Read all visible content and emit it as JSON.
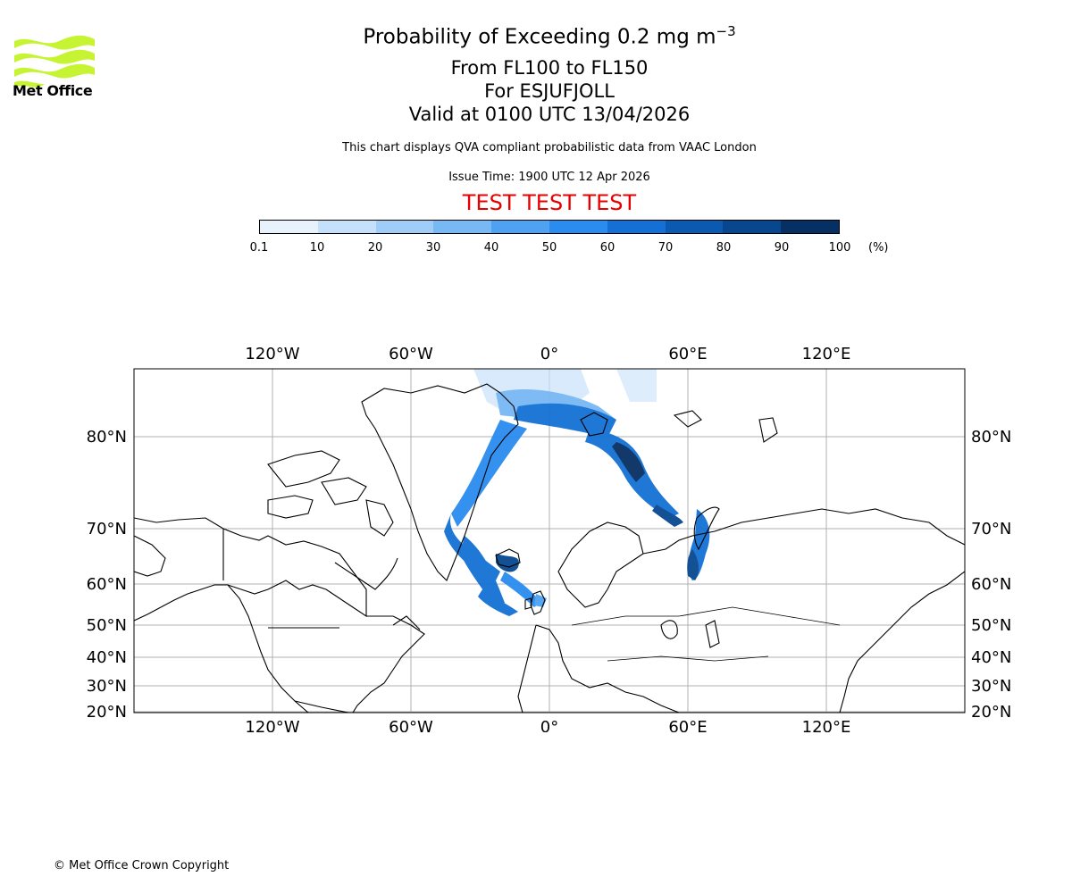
{
  "logo": {
    "text": "Met Office",
    "icon": "met-office-wave-logo",
    "color": "#c6f432"
  },
  "title": {
    "line1": "Probability of Exceeding 0.2 mg m",
    "line1_sup": "−3",
    "line2": "From FL100 to FL150",
    "line3": "For ESJUFJOLL",
    "line4": "Valid at 0100 UTC 13/04/2026"
  },
  "subtitle": "This chart displays QVA compliant probabilistic data from VAAC London",
  "issue_time": "Issue Time: 1900 UTC 12 Apr 2026",
  "test_banner": "TEST TEST TEST",
  "colorbar": {
    "ticks": [
      "0.1",
      "10",
      "20",
      "30",
      "40",
      "50",
      "60",
      "70",
      "80",
      "90",
      "100"
    ],
    "unit": "(%)",
    "colors": [
      "#e8f2fd",
      "#c4e0fa",
      "#a0cdf8",
      "#78b8f5",
      "#4fa2f2",
      "#2a8cef",
      "#1470d4",
      "#0b5ab2",
      "#08478f",
      "#062f63"
    ]
  },
  "map": {
    "top_lon_labels": [
      "120°W",
      "60°W",
      "0°",
      "60°E",
      "120°E"
    ],
    "bottom_lon_labels": [
      "120°W",
      "60°W",
      "0°",
      "60°E",
      "120°E"
    ],
    "lat_labels": [
      "80°N",
      "70°N",
      "60°N",
      "50°N",
      "40°N",
      "30°N",
      "20°N"
    ],
    "lon_values": [
      -120,
      -60,
      0,
      60,
      120
    ],
    "lat_values": [
      80,
      70,
      60,
      50,
      40,
      30,
      20
    ]
  },
  "copyright": "© Met Office Crown Copyright"
}
